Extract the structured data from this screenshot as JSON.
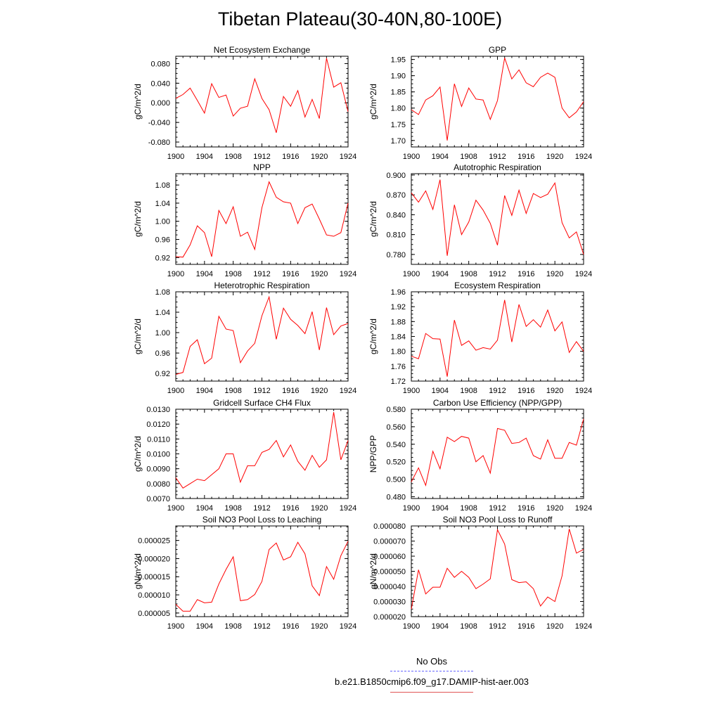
{
  "title": "Tibetan Plateau(30-40N,80-100E)",
  "legend": {
    "items": [
      {
        "label": "No Obs",
        "color": "#6666ff",
        "style": "dashed"
      },
      {
        "label": "b.e21.B1850cmip6.f09_g17.DAMIP-hist-aer.003",
        "color": "#ff0000",
        "style": "solid"
      }
    ]
  },
  "chart_data": [
    {
      "type": "line",
      "title": "Net Ecosystem Exchange",
      "ylabel": "gC/m^2/d",
      "xlim": [
        1900,
        1924
      ],
      "ylim": [
        -0.09,
        0.095
      ],
      "xticks": [
        "1900",
        "1904",
        "1908",
        "1912",
        "1916",
        "1920",
        "1924"
      ],
      "yticks": [
        "0.080",
        "0.040",
        "0.000",
        "-0.040",
        "-0.080"
      ],
      "x": [
        1900,
        1901,
        1902,
        1903,
        1904,
        1905,
        1906,
        1907,
        1908,
        1909,
        1910,
        1911,
        1912,
        1913,
        1914,
        1915,
        1916,
        1917,
        1918,
        1919,
        1920,
        1921,
        1922,
        1923,
        1924
      ],
      "series": [
        {
          "color": "#ff0000",
          "values": [
            0.009,
            0.017,
            0.03,
            0.005,
            -0.021,
            0.039,
            0.011,
            0.016,
            -0.027,
            -0.011,
            -0.007,
            0.049,
            0.009,
            -0.014,
            -0.061,
            0.013,
            -0.007,
            0.025,
            -0.029,
            0.007,
            -0.032,
            0.091,
            0.032,
            0.041,
            -0.018
          ]
        }
      ]
    },
    {
      "type": "line",
      "title": "GPP",
      "ylabel": "gC/m^2/d",
      "xlim": [
        1900,
        1924
      ],
      "ylim": [
        1.68,
        1.96
      ],
      "xticks": [
        "1900",
        "1904",
        "1908",
        "1912",
        "1916",
        "1920",
        "1924"
      ],
      "yticks": [
        "1.95",
        "1.90",
        "1.85",
        "1.80",
        "1.75",
        "1.70"
      ],
      "x": [
        1900,
        1901,
        1902,
        1903,
        1904,
        1905,
        1906,
        1907,
        1908,
        1909,
        1910,
        1911,
        1912,
        1913,
        1914,
        1915,
        1916,
        1917,
        1918,
        1919,
        1920,
        1921,
        1922,
        1923,
        1924
      ],
      "series": [
        {
          "color": "#ff0000",
          "values": [
            1.795,
            1.78,
            1.825,
            1.838,
            1.865,
            1.7,
            1.875,
            1.805,
            1.862,
            1.828,
            1.825,
            1.765,
            1.823,
            1.955,
            1.89,
            1.918,
            1.878,
            1.866,
            1.895,
            1.908,
            1.895,
            1.8,
            1.77,
            1.788,
            1.82
          ]
        }
      ]
    },
    {
      "type": "line",
      "title": "NPP",
      "ylabel": "gC/m^2/d",
      "xlim": [
        1900,
        1924
      ],
      "ylim": [
        0.905,
        1.105
      ],
      "xticks": [
        "1900",
        "1904",
        "1908",
        "1912",
        "1916",
        "1920",
        "1924"
      ],
      "yticks": [
        "1.08",
        "1.04",
        "1.00",
        "0.96",
        "0.92"
      ],
      "x": [
        1900,
        1901,
        1902,
        1903,
        1904,
        1905,
        1906,
        1907,
        1908,
        1909,
        1910,
        1911,
        1912,
        1913,
        1914,
        1915,
        1916,
        1917,
        1918,
        1919,
        1920,
        1921,
        1922,
        1923,
        1924
      ],
      "series": [
        {
          "color": "#ff0000",
          "values": [
            0.922,
            0.921,
            0.948,
            0.99,
            0.975,
            0.922,
            1.024,
            0.995,
            1.032,
            0.967,
            0.976,
            0.938,
            1.03,
            1.087,
            1.053,
            1.043,
            1.04,
            0.995,
            1.03,
            1.038,
            1.005,
            0.97,
            0.967,
            0.975,
            1.04
          ]
        }
      ]
    },
    {
      "type": "line",
      "title": "Autotrophic Respiration",
      "ylabel": "gC/m^2/d",
      "xlim": [
        1900,
        1924
      ],
      "ylim": [
        0.765,
        0.902
      ],
      "xticks": [
        "1900",
        "1904",
        "1908",
        "1912",
        "1916",
        "1920",
        "1924"
      ],
      "yticks": [
        "0.900",
        "0.870",
        "0.840",
        "0.810",
        "0.780"
      ],
      "x": [
        1900,
        1901,
        1902,
        1903,
        1904,
        1905,
        1906,
        1907,
        1908,
        1909,
        1910,
        1911,
        1912,
        1913,
        1914,
        1915,
        1916,
        1917,
        1918,
        1919,
        1920,
        1921,
        1922,
        1923,
        1924
      ],
      "series": [
        {
          "color": "#ff0000",
          "values": [
            0.873,
            0.859,
            0.876,
            0.848,
            0.893,
            0.778,
            0.855,
            0.81,
            0.829,
            0.862,
            0.847,
            0.827,
            0.794,
            0.869,
            0.839,
            0.877,
            0.842,
            0.872,
            0.866,
            0.871,
            0.888,
            0.828,
            0.805,
            0.814,
            0.78
          ]
        }
      ]
    },
    {
      "type": "line",
      "title": "Heterotrophic Respiration",
      "ylabel": "gC/m^2/d",
      "xlim": [
        1900,
        1924
      ],
      "ylim": [
        0.905,
        1.08
      ],
      "xticks": [
        "1900",
        "1904",
        "1908",
        "1912",
        "1916",
        "1920",
        "1924"
      ],
      "yticks": [
        "1.08",
        "1.04",
        "1.00",
        "0.96",
        "0.92"
      ],
      "x": [
        1900,
        1901,
        1902,
        1903,
        1904,
        1905,
        1906,
        1907,
        1908,
        1909,
        1910,
        1911,
        1912,
        1913,
        1914,
        1915,
        1916,
        1917,
        1918,
        1919,
        1920,
        1921,
        1922,
        1923,
        1924
      ],
      "series": [
        {
          "color": "#ff0000",
          "values": [
            0.918,
            0.922,
            0.973,
            0.986,
            0.939,
            0.95,
            1.032,
            1.007,
            1.004,
            0.941,
            0.964,
            0.979,
            1.033,
            1.07,
            0.987,
            1.048,
            1.026,
            1.014,
            0.998,
            1.041,
            0.966,
            1.049,
            0.996,
            1.013,
            1.018
          ]
        }
      ]
    },
    {
      "type": "line",
      "title": "Ecosystem Respiration",
      "ylabel": "gC/m^2/d",
      "xlim": [
        1900,
        1924
      ],
      "ylim": [
        1.72,
        1.96
      ],
      "xticks": [
        "1900",
        "1904",
        "1908",
        "1912",
        "1916",
        "1920",
        "1924"
      ],
      "yticks": [
        "1.96",
        "1.92",
        "1.88",
        "1.84",
        "1.80",
        "1.76",
        "1.72"
      ],
      "x": [
        1900,
        1901,
        1902,
        1903,
        1904,
        1905,
        1906,
        1907,
        1908,
        1909,
        1910,
        1911,
        1912,
        1913,
        1914,
        1915,
        1916,
        1917,
        1918,
        1919,
        1920,
        1921,
        1922,
        1923,
        1924
      ],
      "series": [
        {
          "color": "#ff0000",
          "values": [
            1.787,
            1.78,
            1.848,
            1.834,
            1.833,
            1.732,
            1.884,
            1.816,
            1.828,
            1.803,
            1.81,
            1.806,
            1.83,
            1.938,
            1.825,
            1.926,
            1.867,
            1.885,
            1.865,
            1.911,
            1.855,
            1.879,
            1.797,
            1.826,
            1.8
          ]
        }
      ]
    },
    {
      "type": "line",
      "title": "Gridcell Surface CH4 Flux",
      "ylabel": "gC/m^2/d",
      "xlim": [
        1900,
        1924
      ],
      "ylim": [
        0.007,
        0.013
      ],
      "xticks": [
        "1900",
        "1904",
        "1908",
        "1912",
        "1916",
        "1920",
        "1924"
      ],
      "yticks": [
        "0.0130",
        "0.0120",
        "0.0110",
        "0.0100",
        "0.0090",
        "0.0080",
        "0.0070"
      ],
      "x": [
        1900,
        1901,
        1902,
        1903,
        1904,
        1905,
        1906,
        1907,
        1908,
        1909,
        1910,
        1911,
        1912,
        1913,
        1914,
        1915,
        1916,
        1917,
        1918,
        1919,
        1920,
        1921,
        1922,
        1923,
        1924
      ],
      "series": [
        {
          "color": "#ff0000",
          "values": [
            0.0084,
            0.0077,
            0.008,
            0.0083,
            0.0082,
            0.0086,
            0.009,
            0.01,
            0.01,
            0.0081,
            0.0092,
            0.0092,
            0.0101,
            0.0103,
            0.0109,
            0.0098,
            0.0106,
            0.0095,
            0.0089,
            0.0099,
            0.0091,
            0.0096,
            0.0128,
            0.0096,
            0.0109
          ]
        }
      ]
    },
    {
      "type": "line",
      "title": "Carbon Use Efficiency (NPP/GPP)",
      "ylabel": "NPP/GPP",
      "xlim": [
        1900,
        1924
      ],
      "ylim": [
        0.478,
        0.58
      ],
      "xticks": [
        "1900",
        "1904",
        "1908",
        "1912",
        "1916",
        "1920",
        "1924"
      ],
      "yticks": [
        "0.580",
        "0.560",
        "0.540",
        "0.520",
        "0.500",
        "0.480"
      ],
      "x": [
        1900,
        1901,
        1902,
        1903,
        1904,
        1905,
        1906,
        1907,
        1908,
        1909,
        1910,
        1911,
        1912,
        1913,
        1914,
        1915,
        1916,
        1917,
        1918,
        1919,
        1920,
        1921,
        1922,
        1923,
        1924
      ],
      "series": [
        {
          "color": "#ff0000",
          "values": [
            0.497,
            0.513,
            0.493,
            0.532,
            0.512,
            0.548,
            0.543,
            0.549,
            0.547,
            0.52,
            0.527,
            0.507,
            0.558,
            0.556,
            0.541,
            0.542,
            0.547,
            0.527,
            0.523,
            0.545,
            0.524,
            0.524,
            0.542,
            0.539,
            0.569
          ]
        }
      ]
    },
    {
      "type": "line",
      "title": "Soil NO3 Pool Loss to Leaching",
      "ylabel": "gN/m^2/d",
      "xlim": [
        1900,
        1924
      ],
      "ylim": [
        4e-06,
        2.9e-05
      ],
      "xticks": [
        "1900",
        "1904",
        "1908",
        "1912",
        "1916",
        "1920",
        "1924"
      ],
      "yticks": [
        "0.000025",
        "0.000020",
        "0.000015",
        "0.000010",
        "0.000005"
      ],
      "x": [
        1900,
        1901,
        1902,
        1903,
        1904,
        1905,
        1906,
        1907,
        1908,
        1909,
        1910,
        1911,
        1912,
        1913,
        1914,
        1915,
        1916,
        1917,
        1918,
        1919,
        1920,
        1921,
        1922,
        1923,
        1924
      ],
      "series": [
        {
          "color": "#ff0000",
          "values": [
            7.4e-06,
            5.5e-06,
            5.5e-06,
            8.7e-06,
            7.8e-06,
            8e-06,
            1.3e-05,
            1.7e-05,
            2.05e-05,
            8.4e-06,
            8.7e-06,
            1.01e-05,
            1.37e-05,
            2.25e-05,
            2.43e-05,
            1.96e-05,
            2.05e-05,
            2.45e-05,
            2.13e-05,
            1.25e-05,
            9.8e-06,
            1.78e-05,
            1.43e-05,
            2.08e-05,
            2.48e-05
          ]
        }
      ]
    },
    {
      "type": "line",
      "title": "Soil NO3 Pool Loss to Runoff",
      "ylabel": "gN/m^2/d",
      "xlim": [
        1900,
        1924
      ],
      "ylim": [
        2e-05,
        8e-05
      ],
      "xticks": [
        "1900",
        "1904",
        "1908",
        "1912",
        "1916",
        "1920",
        "1924"
      ],
      "yticks": [
        "0.000080",
        "0.000070",
        "0.000060",
        "0.000050",
        "0.000040",
        "0.000030",
        "0.000020"
      ],
      "x": [
        1900,
        1901,
        1902,
        1903,
        1904,
        1905,
        1906,
        1907,
        1908,
        1909,
        1910,
        1911,
        1912,
        1913,
        1914,
        1915,
        1916,
        1917,
        1918,
        1919,
        1920,
        1921,
        1922,
        1923,
        1924
      ],
      "series": [
        {
          "color": "#ff0000",
          "values": [
            2.5e-05,
            5.1e-05,
            3.5e-05,
            3.95e-05,
            3.95e-05,
            5.2e-05,
            4.6e-05,
            5e-05,
            4.6e-05,
            3.85e-05,
            4.15e-05,
            4.5e-05,
            7.75e-05,
            6.8e-05,
            4.45e-05,
            4.25e-05,
            4.3e-05,
            3.85e-05,
            2.7e-05,
            3.3e-05,
            3e-05,
            4.7e-05,
            7.8e-05,
            6.2e-05,
            6.45e-05
          ]
        }
      ]
    }
  ]
}
